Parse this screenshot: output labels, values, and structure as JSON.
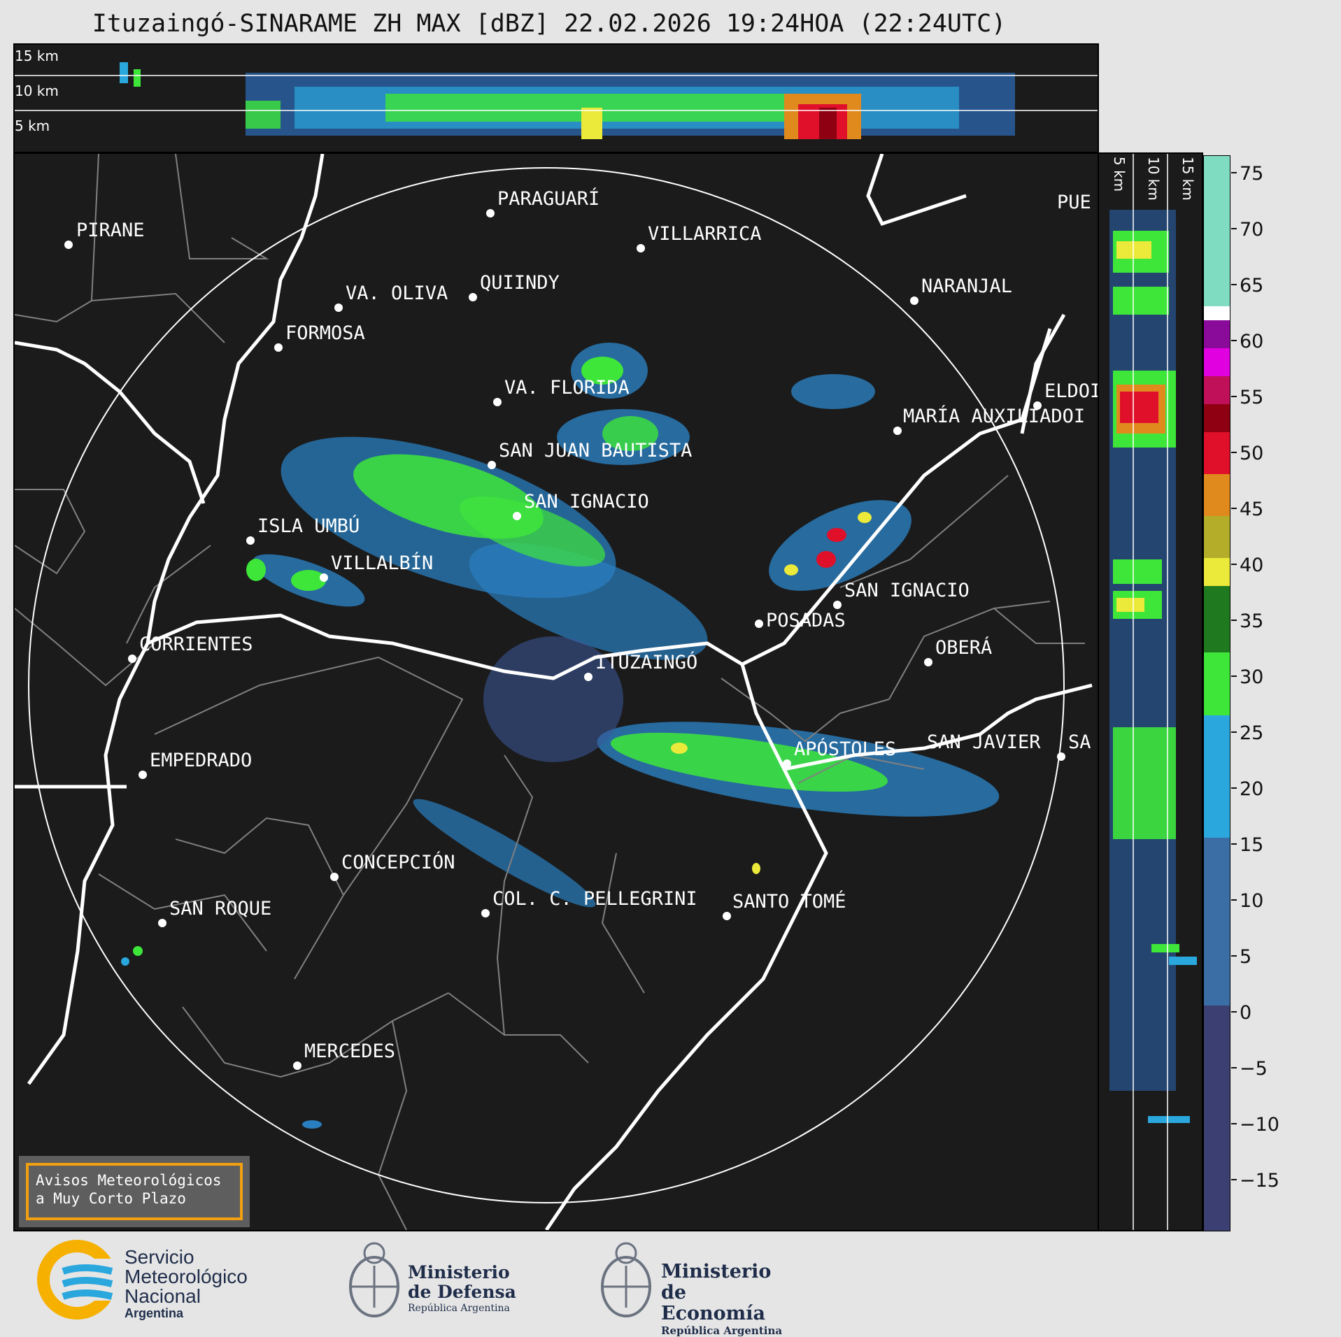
{
  "title": "Ituzaingó-SINARAME ZH MAX [dBZ] 22.02.2026 19:24HOA (22:24UTC)",
  "top_section": {
    "labels": [
      "15 km",
      "10 km",
      "5 km"
    ]
  },
  "side_section": {
    "labels": [
      "5 km",
      "10 km",
      "15 km"
    ]
  },
  "colorbar": {
    "unit": "dBZ",
    "ticks": [
      "75",
      "70",
      "65",
      "60",
      "55",
      "50",
      "45",
      "40",
      "35",
      "30",
      "25",
      "20",
      "15",
      "10",
      "5",
      "0",
      "−5",
      "−10",
      "−15"
    ],
    "colors": {
      "navy": "#3b3f72",
      "steel": "#3a6ea5",
      "cyan": "#2aa7dd",
      "green": "#3ee63a",
      "darkgreen": "#1f7a1f",
      "yellow": "#ebe93a",
      "olive": "#b3ad2a",
      "orange": "#e08a1e",
      "red": "#e0102a",
      "darkred": "#8e0012",
      "magenta": "#e000e0",
      "purple": "#8a0a9a",
      "white": "#ffffff",
      "mint": "#7fdcc0"
    }
  },
  "cities": [
    {
      "name": "PIRANE"
    },
    {
      "name": "PARAGUARÍ"
    },
    {
      "name": "VILLARRICA"
    },
    {
      "name": "PUE"
    },
    {
      "name": "QUIINDY"
    },
    {
      "name": "VA. OLIVA"
    },
    {
      "name": "NARANJAL"
    },
    {
      "name": "FORMOSA"
    },
    {
      "name": "VA. FLORIDA"
    },
    {
      "name": "ELDOI"
    },
    {
      "name": "MARÍA AUXILIADOI"
    },
    {
      "name": "SAN JUAN BAUTISTA"
    },
    {
      "name": "SAN IGNACIO"
    },
    {
      "name": "ISLA UMBÚ"
    },
    {
      "name": "VILLALBÍN"
    },
    {
      "name": "SAN IGNACIO"
    },
    {
      "name": "POSADAS"
    },
    {
      "name": "CORRIENTES"
    },
    {
      "name": "ITUZAINGÓ"
    },
    {
      "name": "OBERÁ"
    },
    {
      "name": "EMPEDRADO"
    },
    {
      "name": "APÓSTOLES"
    },
    {
      "name": "SAN JAVIER"
    },
    {
      "name": "SA"
    },
    {
      "name": "CONCEPCIÓN"
    },
    {
      "name": "COL. C. PELLEGRINI"
    },
    {
      "name": "SANTO TOMÉ"
    },
    {
      "name": "SAN ROQUE"
    },
    {
      "name": "MERCEDES"
    }
  ],
  "warning": {
    "text": "Avisos Meteorológicos\na Muy Corto Plazo"
  },
  "logos": {
    "smn": [
      "Servicio",
      "Meteorológico",
      "Nacional",
      "Argentina"
    ],
    "defensa": [
      "Ministerio",
      "de Defensa",
      "República Argentina"
    ],
    "economia": [
      "Ministerio",
      "de Economía",
      "República Argentina"
    ]
  }
}
